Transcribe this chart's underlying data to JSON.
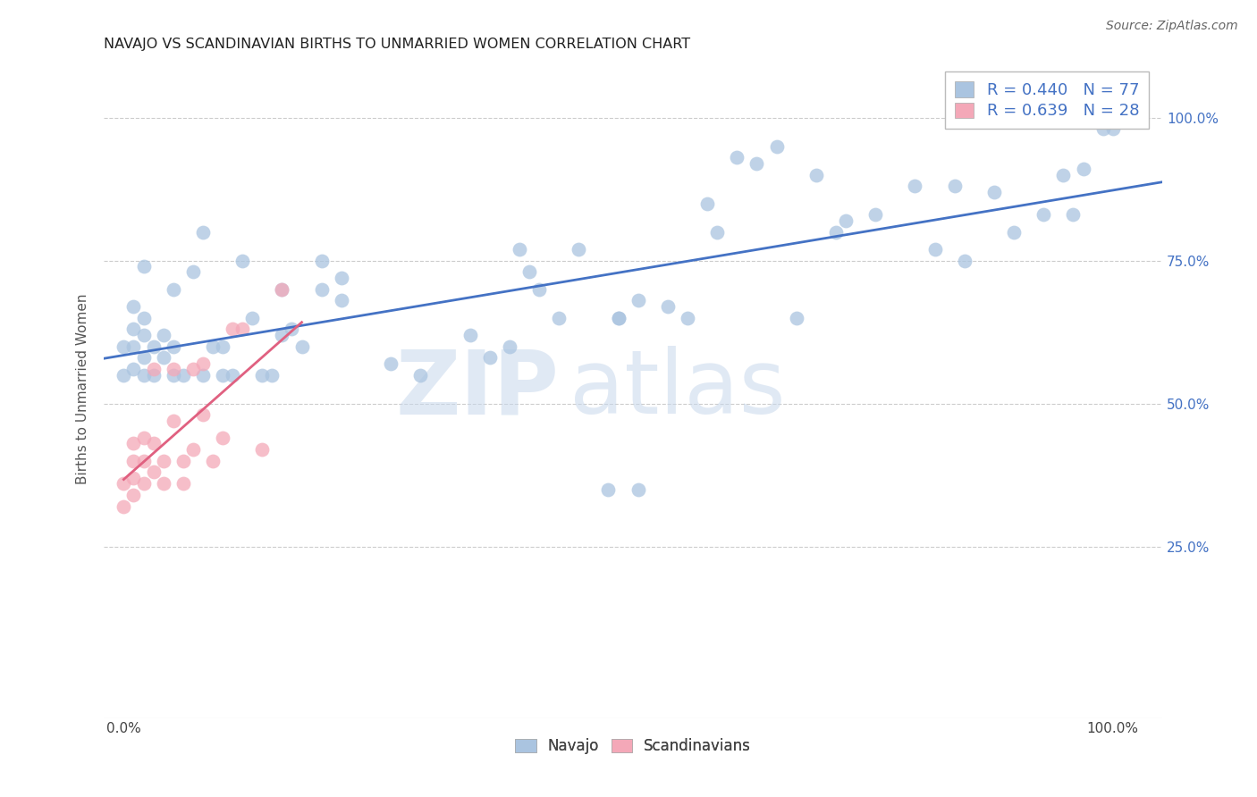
{
  "title": "NAVAJO VS SCANDINAVIAN BIRTHS TO UNMARRIED WOMEN CORRELATION CHART",
  "source": "Source: ZipAtlas.com",
  "ylabel": "Births to Unmarried Women",
  "navajo_R": "0.440",
  "navajo_N": "77",
  "scand_R": "0.639",
  "scand_N": "28",
  "legend_labels": [
    "Navajo",
    "Scandinavians"
  ],
  "navajo_color": "#aac4e0",
  "scand_color": "#f4a8b8",
  "navajo_line_color": "#4472c4",
  "scand_line_color": "#e06080",
  "legend_text_color": "#4472c4",
  "watermark_zip": "ZIP",
  "watermark_atlas": "atlas",
  "navajo_x": [
    0.0,
    0.0,
    0.01,
    0.01,
    0.01,
    0.01,
    0.02,
    0.02,
    0.02,
    0.02,
    0.02,
    0.03,
    0.03,
    0.04,
    0.04,
    0.05,
    0.05,
    0.05,
    0.06,
    0.07,
    0.08,
    0.08,
    0.09,
    0.1,
    0.1,
    0.11,
    0.12,
    0.13,
    0.14,
    0.15,
    0.16,
    0.16,
    0.17,
    0.18,
    0.2,
    0.2,
    0.22,
    0.22,
    0.27,
    0.3,
    0.35,
    0.37,
    0.39,
    0.4,
    0.41,
    0.42,
    0.44,
    0.46,
    0.49,
    0.5,
    0.5,
    0.52,
    0.52,
    0.55,
    0.57,
    0.59,
    0.6,
    0.62,
    0.64,
    0.66,
    0.68,
    0.7,
    0.72,
    0.73,
    0.76,
    0.8,
    0.82,
    0.84,
    0.85,
    0.88,
    0.9,
    0.93,
    0.95,
    0.96,
    0.97,
    0.99,
    1.0
  ],
  "navajo_y": [
    0.55,
    0.6,
    0.56,
    0.6,
    0.63,
    0.67,
    0.55,
    0.58,
    0.62,
    0.65,
    0.74,
    0.55,
    0.6,
    0.58,
    0.62,
    0.55,
    0.6,
    0.7,
    0.55,
    0.73,
    0.55,
    0.8,
    0.6,
    0.55,
    0.6,
    0.55,
    0.75,
    0.65,
    0.55,
    0.55,
    0.7,
    0.62,
    0.63,
    0.6,
    0.7,
    0.75,
    0.72,
    0.68,
    0.57,
    0.55,
    0.62,
    0.58,
    0.6,
    0.77,
    0.73,
    0.7,
    0.65,
    0.77,
    0.35,
    0.65,
    0.65,
    0.68,
    0.35,
    0.67,
    0.65,
    0.85,
    0.8,
    0.93,
    0.92,
    0.95,
    0.65,
    0.9,
    0.8,
    0.82,
    0.83,
    0.88,
    0.77,
    0.88,
    0.75,
    0.87,
    0.8,
    0.83,
    0.9,
    0.83,
    0.91,
    0.98,
    0.98
  ],
  "scand_x": [
    0.0,
    0.0,
    0.01,
    0.01,
    0.01,
    0.01,
    0.02,
    0.02,
    0.02,
    0.03,
    0.03,
    0.03,
    0.04,
    0.04,
    0.05,
    0.05,
    0.06,
    0.06,
    0.07,
    0.07,
    0.08,
    0.08,
    0.09,
    0.1,
    0.11,
    0.12,
    0.14,
    0.16
  ],
  "scand_y": [
    0.32,
    0.36,
    0.34,
    0.37,
    0.4,
    0.43,
    0.36,
    0.4,
    0.44,
    0.38,
    0.43,
    0.56,
    0.36,
    0.4,
    0.47,
    0.56,
    0.36,
    0.4,
    0.42,
    0.56,
    0.48,
    0.57,
    0.4,
    0.44,
    0.63,
    0.63,
    0.42,
    0.7
  ],
  "xlim": [
    -0.02,
    1.05
  ],
  "ylim": [
    -0.05,
    1.1
  ],
  "xticks": [
    0.0,
    0.25,
    0.5,
    0.75,
    1.0
  ],
  "yticks": [
    0.25,
    0.5,
    0.75,
    1.0
  ],
  "grid_color": "#cccccc",
  "title_fontsize": 11.5,
  "source_fontsize": 10,
  "tick_fontsize": 11,
  "ylabel_fontsize": 11,
  "legend1_fontsize": 13,
  "legend2_fontsize": 12,
  "marker_size": 130,
  "marker_alpha": 0.75
}
